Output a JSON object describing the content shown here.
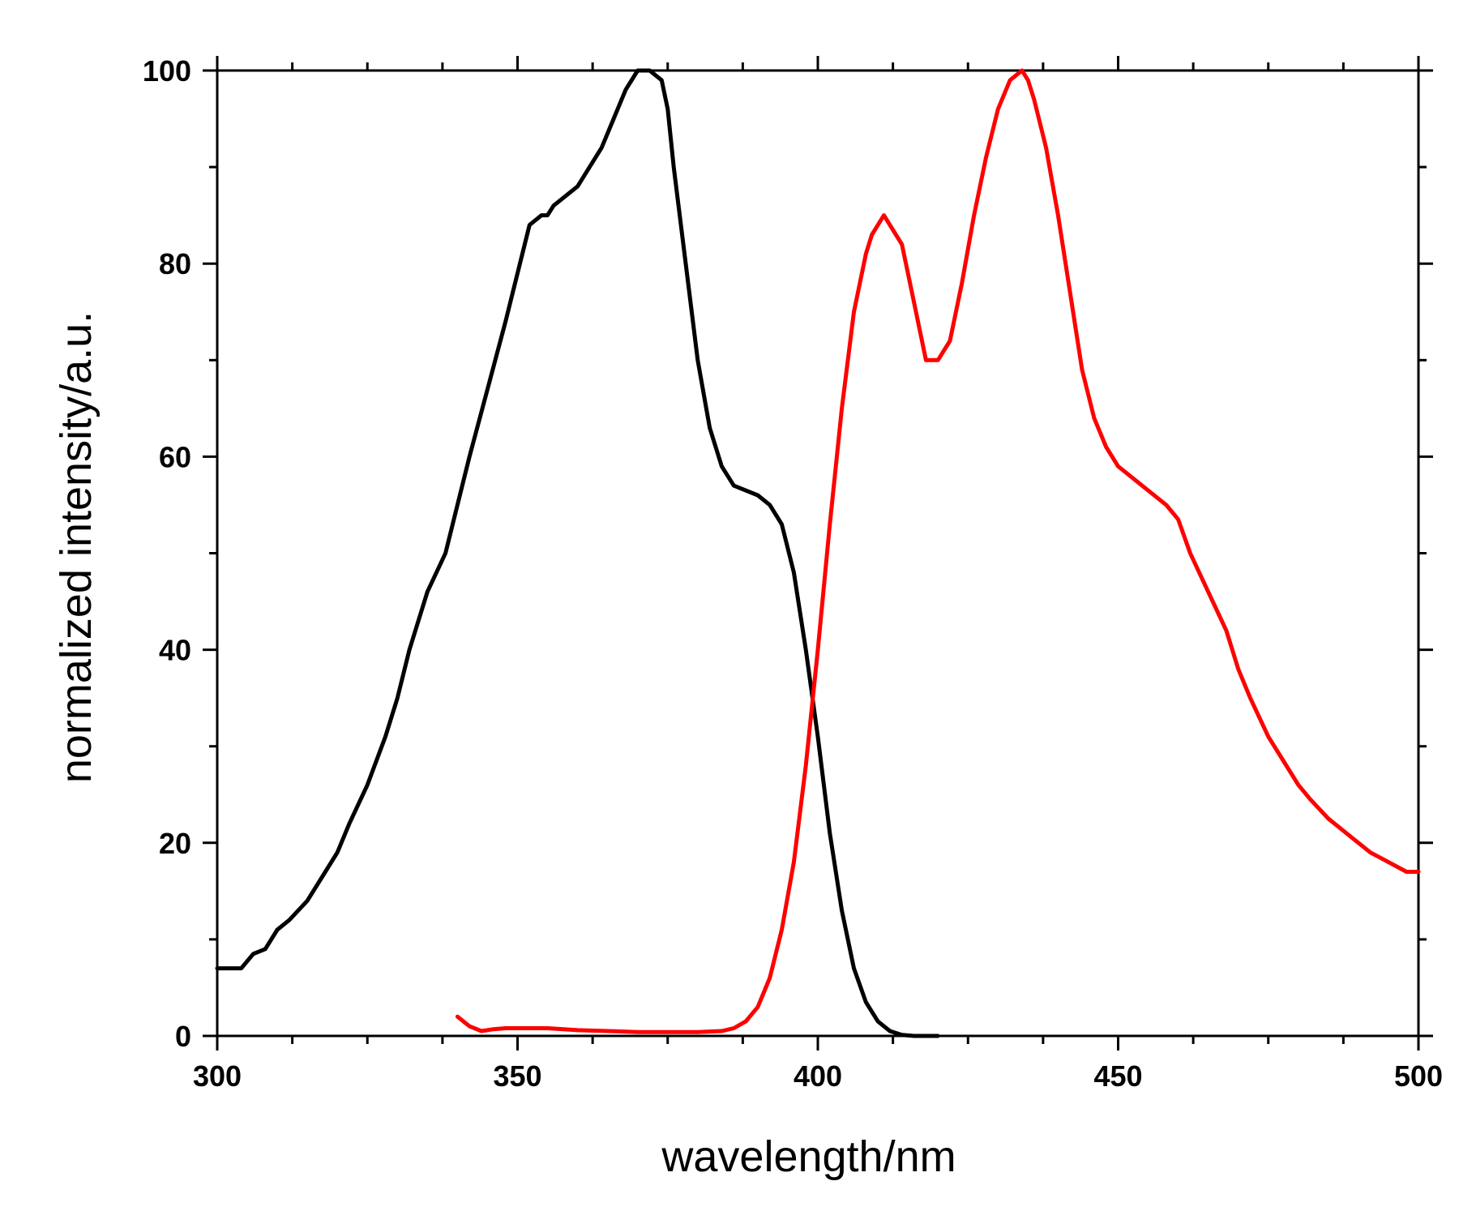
{
  "chart_data": {
    "type": "line",
    "title": "",
    "xlabel": "wavelength/nm",
    "ylabel": "normalized intensity/a.u.",
    "xlim": [
      300,
      500
    ],
    "ylim": [
      0,
      100
    ],
    "x_ticks": [
      "300",
      "350",
      "400",
      "450",
      "500"
    ],
    "y_ticks": [
      "0",
      "20",
      "40",
      "60",
      "80",
      "100"
    ],
    "x_tick_values": [
      300,
      350,
      400,
      450,
      500
    ],
    "y_tick_values": [
      0,
      20,
      40,
      60,
      80,
      100
    ],
    "x_minor_step": 12.5,
    "y_minor_step": 10,
    "grid": false,
    "legend": "none",
    "series": [
      {
        "color": "#000000",
        "x": [
          300,
          302,
          304,
          306,
          308,
          310,
          312,
          315,
          318,
          320,
          322,
          325,
          328,
          330,
          332,
          335,
          338,
          340,
          342,
          345,
          348,
          350,
          352,
          354,
          355,
          356,
          358,
          360,
          362,
          364,
          366,
          368,
          370,
          372,
          374,
          375,
          376,
          378,
          380,
          382,
          384,
          386,
          388,
          390,
          392,
          394,
          396,
          398,
          400,
          402,
          404,
          406,
          408,
          410,
          412,
          414,
          416,
          418,
          420
        ],
        "y": [
          7,
          7,
          7,
          8.5,
          9,
          11,
          12,
          14,
          17,
          19,
          22,
          26,
          31,
          35,
          40,
          46,
          50,
          55,
          60,
          67,
          74,
          79,
          84,
          85,
          85,
          86,
          87,
          88,
          90,
          92,
          95,
          98,
          100,
          100,
          99,
          96,
          90,
          80,
          70,
          63,
          59,
          57,
          56.5,
          56,
          55,
          53,
          48,
          40,
          31,
          21,
          13,
          7,
          3.5,
          1.5,
          0.5,
          0.1,
          0,
          0,
          0
        ]
      },
      {
        "color": "#ff0000",
        "x": [
          340,
          342,
          344,
          346,
          348,
          350,
          355,
          360,
          365,
          370,
          375,
          380,
          384,
          386,
          388,
          390,
          392,
          394,
          396,
          398,
          400,
          402,
          404,
          406,
          408,
          409,
          410,
          411,
          412,
          413,
          414,
          416,
          418,
          420,
          422,
          424,
          426,
          428,
          430,
          432,
          434,
          435,
          436,
          438,
          440,
          442,
          444,
          446,
          448,
          450,
          452,
          455,
          458,
          460,
          462,
          465,
          468,
          470,
          472,
          475,
          478,
          480,
          482,
          485,
          488,
          490,
          492,
          495,
          498,
          500
        ],
        "y": [
          2,
          1,
          0.5,
          0.7,
          0.8,
          0.8,
          0.8,
          0.6,
          0.5,
          0.4,
          0.4,
          0.4,
          0.5,
          0.8,
          1.5,
          3,
          6,
          11,
          18,
          28,
          40,
          53,
          65,
          75,
          81,
          83,
          84,
          85,
          84,
          83,
          82,
          76,
          70,
          70,
          72,
          78,
          85,
          91,
          96,
          99,
          100,
          99,
          97,
          92,
          85,
          77,
          69,
          64,
          61,
          59,
          58,
          56.5,
          55,
          53.5,
          50,
          46,
          42,
          38,
          35,
          31,
          28,
          26,
          24.5,
          22.5,
          21,
          20,
          19,
          18,
          17,
          17
        ]
      }
    ]
  },
  "colors": {
    "axis": "#000000",
    "background": "#ffffff"
  }
}
